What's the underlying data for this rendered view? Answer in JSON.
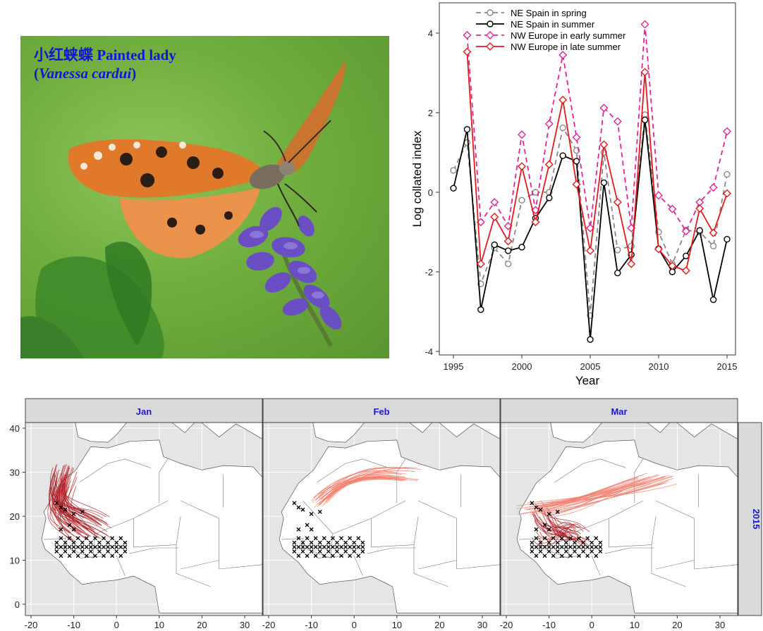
{
  "photo": {
    "caption_line1": "小红蛱蝶 Painted lady",
    "caption_line2_open": "(",
    "caption_line2_species": "Vanessa cardui",
    "caption_line2_close": ")"
  },
  "colors": {
    "spring": "#888888",
    "summer": "#000000",
    "early_summer": "#e0249a",
    "late_summer": "#e41a1c",
    "tracks_dark": "#b01e24",
    "tracks_light": "#f08070",
    "panel_strip": "#d9d9d9",
    "strip_text": "#1a1acc",
    "map_bg": "#e5e5e5",
    "land": "#ffffff",
    "marker": "#000000"
  },
  "chart_data": [
    {
      "type": "line",
      "xlabel": "Year",
      "ylabel": "Log collated index",
      "xlim": [
        1995,
        2015
      ],
      "ylim": [
        -4.0,
        4.4
      ],
      "xticks": [
        1995,
        2000,
        2005,
        2010,
        2015
      ],
      "yticks": [
        -4,
        -2,
        0,
        2,
        4
      ],
      "grid": false,
      "legend_position": "top-left",
      "x": [
        1995,
        1996,
        1997,
        1998,
        1999,
        2000,
        2001,
        2002,
        2003,
        2004,
        2005,
        2006,
        2007,
        2008,
        2009,
        2010,
        2011,
        2012,
        2013,
        2014,
        2015
      ],
      "series": [
        {
          "name": "NE Spain in spring",
          "style": "dashed",
          "marker": "circle",
          "values": [
            0.55,
            1.25,
            -2.3,
            -1.4,
            -1.8,
            -0.2,
            0.0,
            0.0,
            1.62,
            1.05,
            -3.1,
            1.0,
            -1.45,
            -1.35,
            1.95,
            -1.0,
            -1.8,
            -0.95,
            -1.0,
            -1.35,
            0.45
          ]
        },
        {
          "name": "NE Spain in summer",
          "style": "solid",
          "marker": "circle",
          "values": [
            0.1,
            1.58,
            -2.95,
            -1.32,
            -1.47,
            -1.38,
            -0.65,
            -0.14,
            0.92,
            0.78,
            -3.7,
            0.24,
            -2.03,
            -1.57,
            1.82,
            -1.42,
            -2.0,
            -1.6,
            -0.96,
            -2.7,
            -1.18
          ]
        },
        {
          "name": "NW Europe in early summer",
          "style": "dashed",
          "marker": "diamond",
          "values": [
            null,
            3.95,
            -0.75,
            -0.25,
            -0.85,
            1.45,
            -0.45,
            1.72,
            3.45,
            1.38,
            -0.9,
            2.12,
            1.78,
            -0.9,
            4.22,
            -0.08,
            -0.42,
            -0.98,
            -0.25,
            0.12,
            1.53
          ]
        },
        {
          "name": "NW Europe in late summer",
          "style": "solid",
          "marker": "diamond",
          "values": [
            null,
            3.53,
            -1.8,
            -0.62,
            -1.23,
            0.65,
            -0.75,
            0.7,
            2.32,
            0.2,
            -1.47,
            1.2,
            -0.25,
            -1.8,
            3.02,
            -1.43,
            -1.85,
            -1.97,
            -0.41,
            -1.02,
            -0.03
          ]
        }
      ]
    },
    {
      "type": "scatter",
      "description_kind": "faceted map",
      "facets": [
        "Jan",
        "Feb",
        "Mar"
      ],
      "row_strip": "2015",
      "xlim": [
        -22,
        33
      ],
      "ylim": [
        -1,
        42
      ],
      "xticks": [
        -20,
        -10,
        0,
        10,
        20,
        30
      ],
      "yticks": [
        0,
        10,
        20,
        30,
        40
      ]
    }
  ]
}
